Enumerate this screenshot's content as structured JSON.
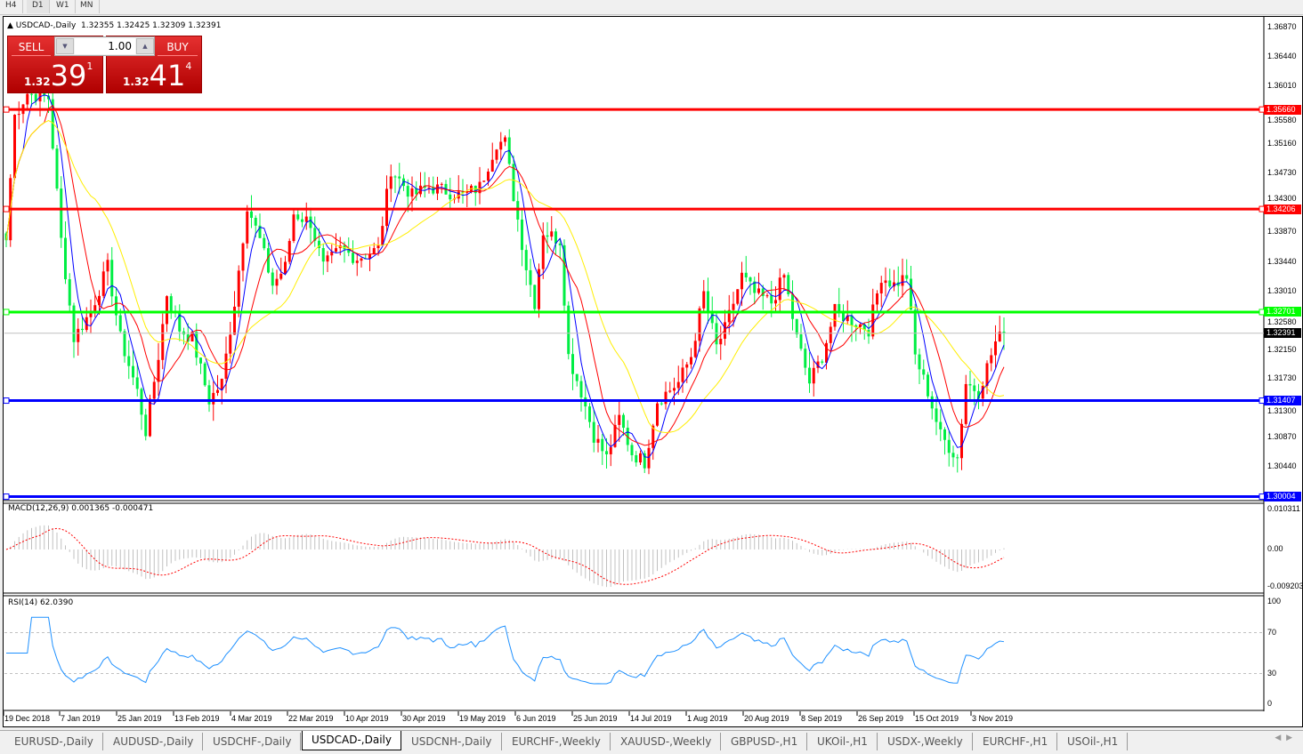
{
  "timeframes": [
    {
      "label": "H4"
    },
    {
      "label": "D1",
      "active": true
    },
    {
      "label": "W1"
    },
    {
      "label": "MN"
    }
  ],
  "symbol_line": {
    "symbol": "USDCAD-,Daily",
    "ohlc": "1.32355 1.32425 1.32309 1.32391"
  },
  "one_click": {
    "sell_label": "SELL",
    "buy_label": "BUY",
    "lot": "1.00",
    "sell_price": {
      "prefix": "1.32",
      "big": "39",
      "pip": "1"
    },
    "buy_price": {
      "prefix": "1.32",
      "big": "41",
      "pip": "4"
    }
  },
  "price_axis": [
    "1.36870",
    "1.36440",
    "1.36010",
    "1.35580",
    "1.35160",
    "1.34730",
    "1.34300",
    "1.33870",
    "1.33440",
    "1.33010",
    "1.32580",
    "1.32150",
    "1.31730",
    "1.31300",
    "1.30870",
    "1.30440"
  ],
  "levels": [
    {
      "price": "1.35660",
      "color": "#ff0000"
    },
    {
      "price": "1.34206",
      "color": "#ff0000"
    },
    {
      "price": "1.32701",
      "color": "#00ff00"
    },
    {
      "price": "1.31407",
      "color": "#0000ff"
    },
    {
      "price": "1.30004",
      "color": "#0000ff"
    }
  ],
  "current_price": "1.32391",
  "macd": {
    "label": "MACD(12,26,9) 0.001365 -0.000471",
    "axis": [
      "0.010311",
      "0.00",
      "-0.009203"
    ]
  },
  "rsi": {
    "label": "RSI(14) 62.0390",
    "axis": [
      "100",
      "70",
      "30",
      "0"
    ]
  },
  "date_axis": [
    "19 Dec 2018",
    "7 Jan 2019",
    "25 Jan 2019",
    "13 Feb 2019",
    "4 Mar 2019",
    "22 Mar 2019",
    "10 Apr 2019",
    "30 Apr 2019",
    "19 May 2019",
    "6 Jun 2019",
    "25 Jun 2019",
    "14 Jul 2019",
    "1 Aug 2019",
    "20 Aug 2019",
    "8 Sep 2019",
    "26 Sep 2019",
    "15 Oct 2019",
    "3 Nov 2019"
  ],
  "colors": {
    "bull": "#ff0000",
    "bear": "#00ee44",
    "ma_fast": "#0000ff",
    "ma_mid": "#ff0000",
    "ma_slow": "#ffee00"
  },
  "chart_tabs": [
    {
      "label": "EURUSD-,Daily"
    },
    {
      "label": "AUDUSD-,Daily"
    },
    {
      "label": "USDCHF-,Daily"
    },
    {
      "label": "USDCAD-,Daily",
      "active": true
    },
    {
      "label": "USDCNH-,Daily"
    },
    {
      "label": "EURCHF-,Weekly"
    },
    {
      "label": "XAUUSD-,Weekly"
    },
    {
      "label": "GBPUSD-,H1"
    },
    {
      "label": "UKOil-,H1"
    },
    {
      "label": "USDX-,Weekly"
    },
    {
      "label": "EURCHF-,H1"
    },
    {
      "label": "USOil-,H1"
    }
  ],
  "chart_data": {
    "type": "candlestick",
    "ylim": [
      1.30004,
      1.3687
    ],
    "close_keypoints": [
      [
        0,
        1.3375
      ],
      [
        2,
        1.3557
      ],
      [
        5,
        1.359
      ],
      [
        10,
        1.3583
      ],
      [
        13,
        1.3375
      ],
      [
        16,
        1.3232
      ],
      [
        20,
        1.3271
      ],
      [
        24,
        1.3336
      ],
      [
        27,
        1.3232
      ],
      [
        31,
        1.3154
      ],
      [
        33,
        1.3096
      ],
      [
        36,
        1.3206
      ],
      [
        38,
        1.3297
      ],
      [
        41,
        1.3245
      ],
      [
        44,
        1.3232
      ],
      [
        48,
        1.3141
      ],
      [
        51,
        1.3167
      ],
      [
        54,
        1.3284
      ],
      [
        57,
        1.3427
      ],
      [
        60,
        1.3375
      ],
      [
        63,
        1.331
      ],
      [
        66,
        1.3336
      ],
      [
        68,
        1.3414
      ],
      [
        72,
        1.3401
      ],
      [
        75,
        1.3336
      ],
      [
        79,
        1.3362
      ],
      [
        83,
        1.3349
      ],
      [
        88,
        1.3362
      ],
      [
        91,
        1.3479
      ],
      [
        96,
        1.344
      ],
      [
        100,
        1.3453
      ],
      [
        104,
        1.3447
      ],
      [
        108,
        1.344
      ],
      [
        112,
        1.3453
      ],
      [
        116,
        1.3518
      ],
      [
        118,
        1.3518
      ],
      [
        120,
        1.344
      ],
      [
        123,
        1.3336
      ],
      [
        125,
        1.3284
      ],
      [
        127,
        1.3388
      ],
      [
        131,
        1.3375
      ],
      [
        133,
        1.3206
      ],
      [
        136,
        1.3154
      ],
      [
        139,
        1.309
      ],
      [
        142,
        1.3057
      ],
      [
        145,
        1.3115
      ],
      [
        148,
        1.3064
      ],
      [
        151,
        1.3051
      ],
      [
        154,
        1.3141
      ],
      [
        159,
        1.3167
      ],
      [
        162,
        1.3206
      ],
      [
        165,
        1.3297
      ],
      [
        168,
        1.3219
      ],
      [
        170,
        1.3245
      ],
      [
        174,
        1.3323
      ],
      [
        177,
        1.3297
      ],
      [
        181,
        1.3284
      ],
      [
        184,
        1.3323
      ],
      [
        187,
        1.3232
      ],
      [
        190,
        1.3167
      ],
      [
        193,
        1.3206
      ],
      [
        196,
        1.3271
      ],
      [
        200,
        1.3258
      ],
      [
        204,
        1.3245
      ],
      [
        207,
        1.3323
      ],
      [
        210,
        1.331
      ],
      [
        213,
        1.3323
      ],
      [
        215,
        1.3206
      ],
      [
        218,
        1.3154
      ],
      [
        221,
        1.309
      ],
      [
        225,
        1.3057
      ],
      [
        227,
        1.3167
      ],
      [
        230,
        1.3154
      ],
      [
        234,
        1.3226
      ],
      [
        236,
        1.32391
      ]
    ]
  }
}
